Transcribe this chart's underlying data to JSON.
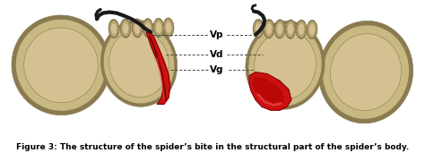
{
  "title": "Figure 3: The structure of the spider’s bite in the structural part of the spider’s body.",
  "title_fontsize": 6.5,
  "background_color": "#ffffff",
  "figsize": [
    4.74,
    1.71
  ],
  "dpi": 100,
  "labels": [
    "Vg",
    "Vd",
    "Vp"
  ],
  "label_fontsize": 7.5,
  "dot_color": "#444444",
  "body_color_light": "#c8b882",
  "body_color_dark": "#a09060",
  "body_color_shadow": "#8a7a50",
  "red_color": "#cc1111",
  "red_dark": "#880000",
  "dark_fang": "#1a1a1a"
}
